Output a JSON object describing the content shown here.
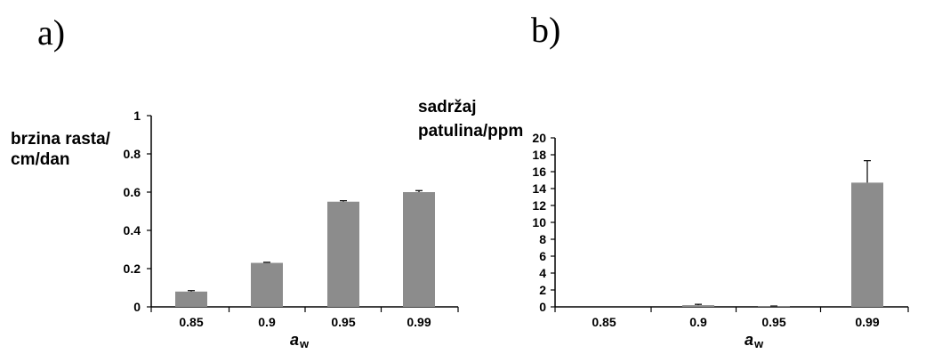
{
  "chart_data": [
    {
      "type": "bar",
      "panel_label": "a)",
      "ylabel_lines": [
        "brzina rasta/",
        "cm/dan"
      ],
      "xlabel": {
        "symbol": "a",
        "subscript": "w"
      },
      "categories": [
        "0.85",
        "0.9",
        "0.95",
        "0.99"
      ],
      "values": [
        0.08,
        0.23,
        0.55,
        0.6
      ],
      "errors": [
        0.005,
        0.003,
        0.005,
        0.008
      ],
      "ylim": [
        0,
        1
      ],
      "yticks": [
        "0",
        "0.2",
        "0.4",
        "0.6",
        "0.8",
        "1"
      ],
      "bar_color": "#8c8c8c",
      "grid": false,
      "legend": "none"
    },
    {
      "type": "bar",
      "panel_label": "b)",
      "ylabel_lines": [
        "sadržaj",
        "patulina/ppm"
      ],
      "xlabel": {
        "symbol": "a",
        "subscript": "w"
      },
      "categories": [
        "0.85",
        "0.9",
        "0.95",
        "0.99"
      ],
      "values": [
        0,
        0.2,
        0.05,
        14.7
      ],
      "errors": [
        0,
        0.1,
        0.05,
        2.6
      ],
      "ylim": [
        0,
        20
      ],
      "yticks": [
        "0",
        "2",
        "4",
        "6",
        "8",
        "10",
        "12",
        "14",
        "16",
        "18",
        "20"
      ],
      "bar_color": "#8c8c8c",
      "grid": false,
      "legend": "none"
    }
  ]
}
